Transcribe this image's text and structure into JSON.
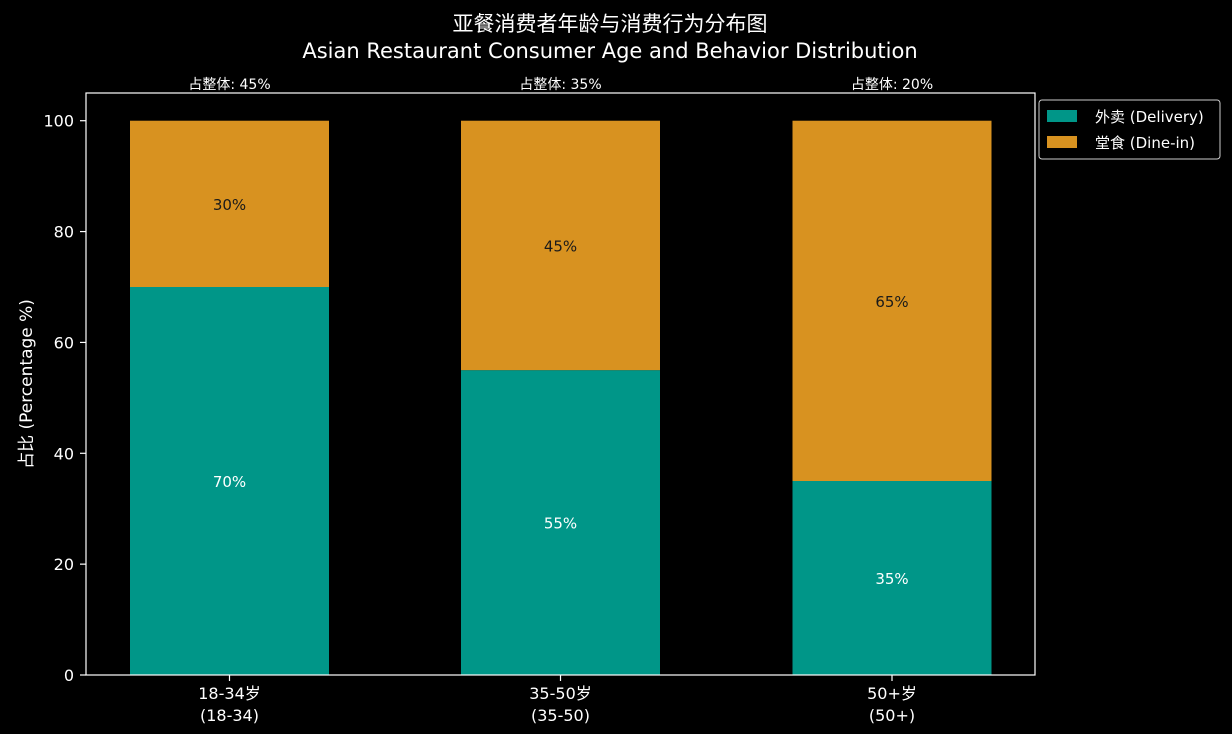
{
  "chart_data": {
    "type": "bar",
    "stacked": true,
    "title": "亚餐消费者年龄与消费行为分布图",
    "subtitle": "Asian Restaurant Consumer Age and Behavior Distribution",
    "xlabel": "",
    "ylabel": "占比 (Percentage %)",
    "ylim": [
      0,
      105
    ],
    "yticks": [
      0,
      20,
      40,
      60,
      80,
      100
    ],
    "categories": [
      {
        "label": "18-34岁",
        "sublabel": "(18-34)",
        "share_label": "占整体: 45%"
      },
      {
        "label": "35-50岁",
        "sublabel": "(35-50)",
        "share_label": "占整体: 35%"
      },
      {
        "label": "50+岁",
        "sublabel": "(50+)",
        "share_label": "占整体: 20%"
      }
    ],
    "series": [
      {
        "name": "外卖 (Delivery)",
        "color": "#009688",
        "label_color": "#ffffff",
        "values": [
          70,
          55,
          35
        ],
        "labels": [
          "70%",
          "55%",
          "35%"
        ]
      },
      {
        "name": "堂食 (Dine-in)",
        "color": "#D89220",
        "label_color": "#1a1a1a",
        "values": [
          30,
          45,
          65
        ],
        "labels": [
          "30%",
          "45%",
          "65%"
        ]
      }
    ],
    "grid": false,
    "legend_position": "outside-top-right",
    "background": "#000000",
    "axis_color": "#ffffff"
  }
}
